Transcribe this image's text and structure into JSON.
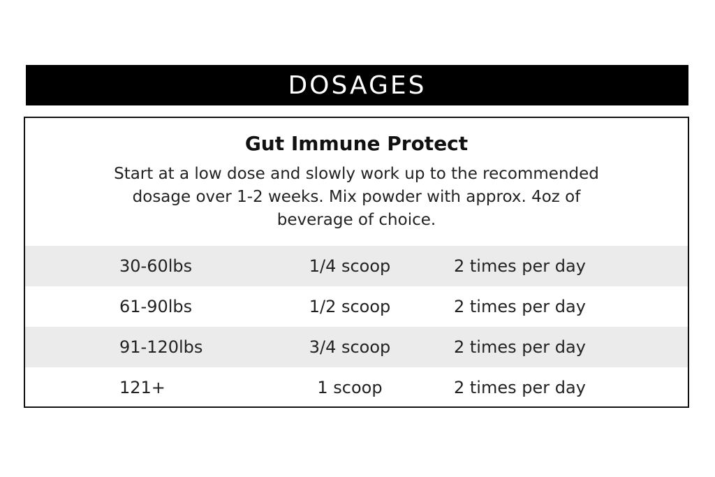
{
  "header": {
    "title": "DOSAGES"
  },
  "card": {
    "product_name": "Gut Immune Protect",
    "instructions_line1": "Start at a low dose and slowly work up to the recommended",
    "instructions_line2": "dosage over 1-2 weeks. Mix powder with approx. 4oz of",
    "instructions_line3": "beverage of choice.",
    "rows": [
      {
        "weight": "30-60lbs",
        "amount": "1/4 scoop",
        "frequency": "2 times per day",
        "shaded": true
      },
      {
        "weight": "61-90lbs",
        "amount": "1/2 scoop",
        "frequency": "2 times per day",
        "shaded": false
      },
      {
        "weight": "91-120lbs",
        "amount": "3/4 scoop",
        "frequency": "2 times per day",
        "shaded": true
      },
      {
        "weight": "121+",
        "amount": "1 scoop",
        "frequency": "2 times per day",
        "shaded": false
      }
    ]
  },
  "colors": {
    "banner_background": "#000000",
    "banner_text": "#ffffff",
    "row_shade": "#ebebeb",
    "border": "#111111"
  }
}
